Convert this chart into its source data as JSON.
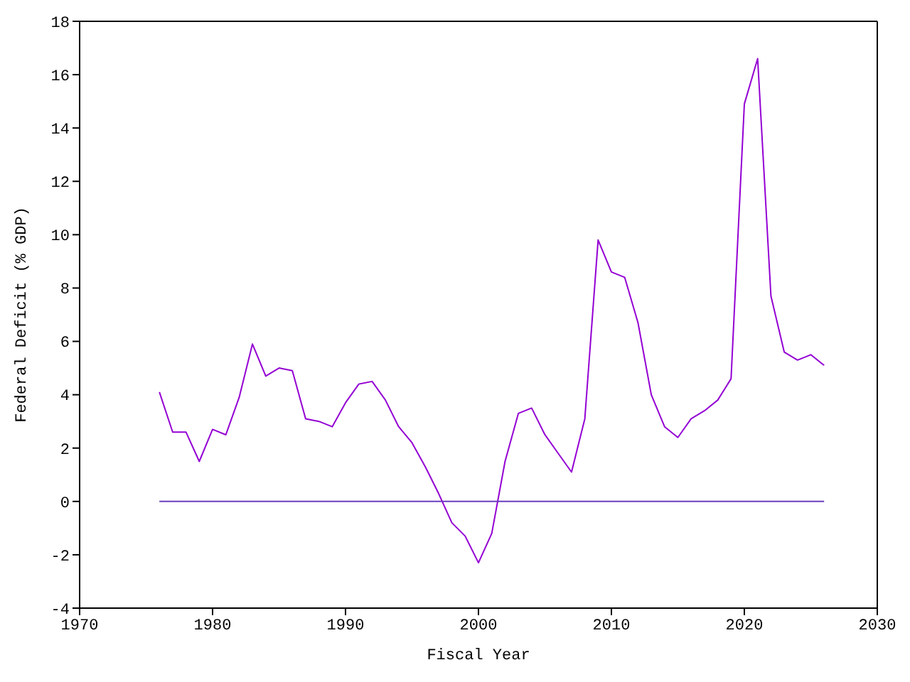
{
  "chart_data": {
    "type": "line",
    "xlabel": "Fiscal Year",
    "ylabel": "Federal Deficit (% GDP)",
    "xlim": [
      1970,
      2030
    ],
    "xticks": [
      1970,
      1980,
      1990,
      2000,
      2010,
      2020,
      2030
    ],
    "ylim": [
      -4,
      18
    ],
    "yticks": [
      -4,
      -2,
      0,
      2,
      4,
      6,
      8,
      10,
      12,
      14,
      16,
      18
    ],
    "marker": "none",
    "series": [
      {
        "color": "#9400d3",
        "x": [
          1976,
          1977,
          1978,
          1979,
          1980,
          1981,
          1982,
          1983,
          1984,
          1985,
          1986,
          1987,
          1988,
          1989,
          1990,
          1991,
          1992,
          1993,
          1994,
          1995,
          1996,
          1997,
          1998,
          1999,
          2000,
          2001,
          2002,
          2003,
          2004,
          2005,
          2006,
          2007,
          2008,
          2009,
          2010,
          2011,
          2012,
          2013,
          2014,
          2015,
          2016,
          2017,
          2018,
          2019,
          2020,
          2021,
          2022,
          2023,
          2024,
          2025,
          2026
        ],
        "values": [
          4.1,
          2.6,
          2.6,
          1.5,
          2.7,
          2.5,
          3.9,
          5.9,
          4.7,
          5.0,
          4.9,
          3.1,
          3.0,
          2.8,
          3.7,
          4.4,
          4.5,
          3.8,
          2.8,
          2.2,
          1.3,
          0.3,
          -0.8,
          -1.3,
          -2.3,
          -1.2,
          1.5,
          3.3,
          3.5,
          2.5,
          1.8,
          1.1,
          3.1,
          9.8,
          8.6,
          8.4,
          6.7,
          4.0,
          2.8,
          2.4,
          3.1,
          3.4,
          3.8,
          4.6,
          14.9,
          16.6,
          7.7,
          5.6,
          5.3,
          5.5,
          5.1
        ]
      },
      {
        "color": "#6a3dbf",
        "x": [
          1976,
          2026
        ],
        "values": [
          0,
          0
        ]
      }
    ]
  }
}
